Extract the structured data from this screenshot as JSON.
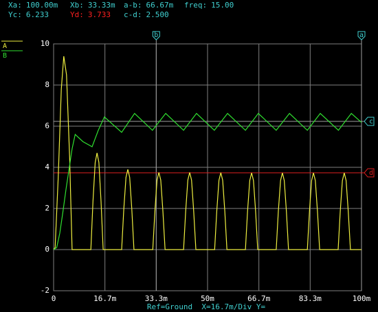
{
  "chart_data": {
    "type": "line",
    "background": "#000000",
    "grid": true,
    "xlim": [
      0,
      100
    ],
    "xticks": [
      {
        "value": 0,
        "label": "0"
      },
      {
        "value": 16.67,
        "label": "16.7m"
      },
      {
        "value": 33.33,
        "label": "33.3m"
      },
      {
        "value": 50,
        "label": "50m"
      },
      {
        "value": 66.67,
        "label": "66.7m"
      },
      {
        "value": 83.33,
        "label": "83.3m"
      },
      {
        "value": 100,
        "label": "100m"
      }
    ],
    "ylim": [
      -2,
      10
    ],
    "yticks": [
      -2,
      0,
      2,
      4,
      6,
      8,
      10
    ],
    "footer": "Ref=Ground  X=16.7m/Div Y=",
    "readout": [
      [
        {
          "caption": "Xa:",
          "value": "100.00m"
        },
        {
          "caption": "Xb:",
          "value": "33.33m"
        },
        {
          "caption": "a-b:",
          "value": "66.67m"
        },
        {
          "caption": "freq:",
          "value": "15.00"
        }
      ],
      [
        {
          "caption": "Yc:",
          "value": "6.233"
        },
        {
          "caption": "Yd:",
          "value": "3.733",
          "color": "#ff2020"
        },
        {
          "caption": "c-d:",
          "value": "2.500"
        }
      ]
    ],
    "cursors": [
      {
        "name": "b",
        "axis": "x",
        "value": 33.33,
        "color": "#a0a0a0"
      },
      {
        "name": "a",
        "axis": "x",
        "value": 100,
        "color": "#a0a0a0"
      },
      {
        "name": "c",
        "axis": "y",
        "value": 6.233,
        "color": "#a0a0a0"
      },
      {
        "name": "d",
        "axis": "y",
        "value": 3.733,
        "color": "#e02020"
      }
    ],
    "series": [
      {
        "name": "A",
        "color": "#f0f040",
        "x": [
          0,
          0.5,
          1.5,
          2.5,
          3.3,
          4.2,
          5.2,
          6.0,
          12.1,
          12.8,
          13.5,
          14.1,
          14.7,
          15.4,
          16.1,
          22.1,
          22.8,
          23.5,
          24.1,
          24.7,
          25.4,
          26.1,
          32.2,
          32.9,
          33.6,
          34.2,
          34.8,
          35.5,
          36.2,
          42.2,
          42.9,
          43.6,
          44.2,
          44.8,
          45.5,
          46.2,
          52.3,
          53.0,
          53.7,
          54.3,
          54.9,
          55.6,
          56.3,
          62.3,
          63.0,
          63.7,
          64.3,
          64.9,
          65.6,
          66.3,
          72.3,
          73.0,
          73.7,
          74.3,
          74.9,
          75.6,
          76.3,
          82.4,
          83.1,
          83.8,
          84.4,
          85.0,
          85.7,
          86.4,
          92.4,
          93.1,
          93.8,
          94.4,
          95.0,
          95.7,
          96.4,
          100
        ],
        "values": [
          0,
          0.1,
          3.5,
          7.8,
          9.4,
          8.5,
          4.5,
          0,
          0,
          2.35,
          4.23,
          4.7,
          4.23,
          2.35,
          0,
          0,
          1.95,
          3.51,
          3.9,
          3.51,
          1.95,
          0,
          0,
          1.88,
          3.38,
          3.75,
          3.38,
          1.88,
          0,
          0,
          1.88,
          3.38,
          3.75,
          3.38,
          1.88,
          0,
          0,
          1.87,
          3.37,
          3.74,
          3.37,
          1.87,
          0,
          0,
          1.87,
          3.36,
          3.73,
          3.36,
          1.87,
          0,
          0,
          1.87,
          3.36,
          3.73,
          3.36,
          1.87,
          0,
          0,
          1.87,
          3.36,
          3.73,
          3.36,
          1.87,
          0,
          0,
          1.87,
          3.36,
          3.73,
          3.36,
          1.87,
          0,
          0
        ]
      },
      {
        "name": "B",
        "color": "#30e030",
        "x": [
          0,
          1,
          2,
          3,
          4,
          5,
          6,
          7,
          9.5,
          12.5,
          14.5,
          16.5,
          22.1,
          26.3,
          32.1,
          36.4,
          42.2,
          46.4,
          52.2,
          56.5,
          62.3,
          66.5,
          72.3,
          76.6,
          82.4,
          86.6,
          92.5,
          96.7,
          100
        ],
        "values": [
          0,
          0.1,
          0.8,
          1.8,
          2.9,
          3.9,
          4.9,
          5.6,
          5.25,
          5.0,
          5.8,
          6.45,
          5.7,
          6.62,
          5.8,
          6.62,
          5.8,
          6.62,
          5.8,
          6.62,
          5.8,
          6.62,
          5.8,
          6.62,
          5.8,
          6.62,
          5.8,
          6.62,
          6.18
        ]
      }
    ]
  }
}
